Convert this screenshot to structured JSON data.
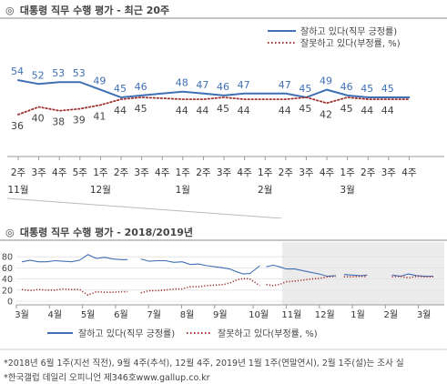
{
  "chart_data": [
    {
      "type": "line",
      "title": "대통령 직무 수행 평가 - 최근 20주",
      "title_mark": "◎",
      "x": [
        "2주",
        "3주",
        "4주",
        "5주",
        "1주",
        "2주",
        "3주",
        "4주",
        "1주",
        "2주",
        "3주",
        "4주",
        "1주",
        "2주",
        "3주",
        "4주",
        "1주",
        "2주",
        "3주",
        "4주"
      ],
      "month_labels": [
        {
          "index": 0,
          "label": "11월"
        },
        {
          "index": 4,
          "label": "12월"
        },
        {
          "index": 8,
          "label": "1월"
        },
        {
          "index": 12,
          "label": "2월"
        },
        {
          "index": 16,
          "label": "3월"
        }
      ],
      "series": [
        {
          "name": "잘하고 있다(직무 긍정률)",
          "color": "#3f6fb5",
          "style": "solid",
          "values": [
            54,
            52,
            53,
            53,
            49,
            45,
            46,
            null,
            48,
            47,
            46,
            47,
            null,
            47,
            45,
            49,
            46,
            45,
            45,
            null
          ],
          "labels": [
            "54",
            "52",
            "53",
            "53",
            "49",
            "45",
            "46",
            "",
            "48",
            "47",
            "46",
            "47",
            "",
            "47",
            "45",
            "49",
            "46",
            "45",
            "45",
            ""
          ]
        },
        {
          "name": "잘못하고 있다(부정률, %)",
          "color": "#a03030",
          "style": "dotted",
          "values": [
            36,
            40,
            38,
            39,
            41,
            44,
            45,
            null,
            44,
            44,
            45,
            44,
            null,
            44,
            45,
            42,
            45,
            44,
            44,
            null
          ],
          "labels": [
            "36",
            "40",
            "38",
            "39",
            "41",
            "44",
            "45",
            "",
            "44",
            "44",
            "45",
            "44",
            "",
            "44",
            "45",
            "42",
            "45",
            "44",
            "44",
            ""
          ]
        }
      ],
      "ylim": [
        30,
        60
      ],
      "legend": "top-right",
      "grid": false
    },
    {
      "type": "line",
      "title": "대통령 직무 수행 평가 - 2018/2019년",
      "title_mark": "◎",
      "x_months": [
        "3월",
        "4월",
        "5월",
        "6월",
        "7월",
        "8월",
        "9월",
        "10월",
        "11월",
        "12월",
        "1월",
        "2월",
        "3월"
      ],
      "yticks": [
        "0",
        "20",
        "40",
        "60",
        "80"
      ],
      "ylim": [
        0,
        90
      ],
      "highlight": "last 20 weeks",
      "series": [
        {
          "name": "잘하고 있다(직무 긍정률)",
          "color": "#3f6fb5",
          "style": "solid",
          "segments": [
            [
              [
                0,
                71
              ],
              [
                0.25,
                74
              ],
              [
                0.5,
                71
              ],
              [
                0.75,
                71
              ],
              [
                1,
                73
              ],
              [
                1.25,
                72
              ],
              [
                1.5,
                71
              ],
              [
                1.75,
                74
              ],
              [
                2,
                84
              ],
              [
                2.25,
                77
              ],
              [
                2.5,
                79
              ],
              [
                2.75,
                76
              ],
              [
                3,
                75
              ],
              [
                3.2,
                75
              ]
            ],
            [
              [
                3.6,
                76
              ],
              [
                3.85,
                72
              ],
              [
                4.1,
                73
              ],
              [
                4.35,
                73
              ],
              [
                4.6,
                70
              ],
              [
                4.85,
                71
              ],
              [
                5.1,
                66
              ],
              [
                5.35,
                67
              ],
              [
                5.6,
                64
              ],
              [
                5.85,
                62
              ],
              [
                6.1,
                60
              ],
              [
                6.3,
                58
              ],
              [
                6.5,
                53
              ],
              [
                6.7,
                49
              ],
              [
                6.9,
                50
              ],
              [
                7.1,
                59
              ],
              [
                7.2,
                64
              ]
            ],
            [
              [
                7.4,
                62
              ],
              [
                7.6,
                65
              ],
              [
                7.8,
                62
              ],
              [
                8,
                58
              ],
              [
                8.25,
                58
              ],
              [
                8.5,
                55
              ],
              [
                8.75,
                52
              ],
              [
                9,
                49
              ],
              [
                9.25,
                45
              ],
              [
                9.5,
                46
              ]
            ],
            [
              [
                9.75,
                48
              ],
              [
                10,
                47
              ],
              [
                10.25,
                46
              ],
              [
                10.45,
                47
              ]
            ],
            [
              [
                11.2,
                47
              ],
              [
                11.45,
                45
              ],
              [
                11.7,
                49
              ],
              [
                11.95,
                46
              ],
              [
                12.2,
                45
              ],
              [
                12.45,
                45
              ]
            ]
          ]
        },
        {
          "name": "잘못하고 있다(부정률, %)",
          "color": "#a03030",
          "style": "dotted",
          "segments": [
            [
              [
                0,
                21
              ],
              [
                0.25,
                19
              ],
              [
                0.5,
                21
              ],
              [
                0.75,
                20
              ],
              [
                1,
                20
              ],
              [
                1.25,
                22
              ],
              [
                1.5,
                21
              ],
              [
                1.75,
                21
              ],
              [
                2,
                11
              ],
              [
                2.25,
                17
              ],
              [
                2.5,
                16
              ],
              [
                2.75,
                16
              ],
              [
                3,
                17
              ],
              [
                3.2,
                17
              ]
            ],
            [
              [
                3.6,
                15
              ],
              [
                3.85,
                19
              ],
              [
                4.1,
                19
              ],
              [
                4.35,
                20
              ],
              [
                4.6,
                22
              ],
              [
                4.85,
                22
              ],
              [
                5.1,
                26
              ],
              [
                5.35,
                26
              ],
              [
                5.6,
                28
              ],
              [
                5.85,
                29
              ],
              [
                6.1,
                30
              ],
              [
                6.3,
                33
              ],
              [
                6.5,
                38
              ],
              [
                6.7,
                41
              ],
              [
                6.9,
                40
              ],
              [
                7.1,
                32
              ],
              [
                7.2,
                28
              ]
            ],
            [
              [
                7.4,
                30
              ],
              [
                7.6,
                28
              ],
              [
                7.8,
                30
              ],
              [
                8,
                35
              ],
              [
                8.25,
                36
              ],
              [
                8.5,
                38
              ],
              [
                8.75,
                40
              ],
              [
                9,
                41
              ],
              [
                9.25,
                44
              ],
              [
                9.5,
                45
              ]
            ],
            [
              [
                9.75,
                44
              ],
              [
                10,
                44
              ],
              [
                10.25,
                45
              ],
              [
                10.45,
                44
              ]
            ],
            [
              [
                11.2,
                44
              ],
              [
                11.45,
                45
              ],
              [
                11.7,
                42
              ],
              [
                11.95,
                45
              ],
              [
                12.2,
                44
              ],
              [
                12.45,
                44
              ]
            ]
          ]
        }
      ],
      "legend": "bottom"
    }
  ],
  "footnotes": [
    "*2018년 6월 1주(지선 직전), 9월 4주(추석), 12월 4주, 2019년 1월 1주(연말연시), 2월 1주(설)는 조사 실",
    "*한국갤럽 데일리 오피니언 제346호www.gallup.co.kr"
  ]
}
